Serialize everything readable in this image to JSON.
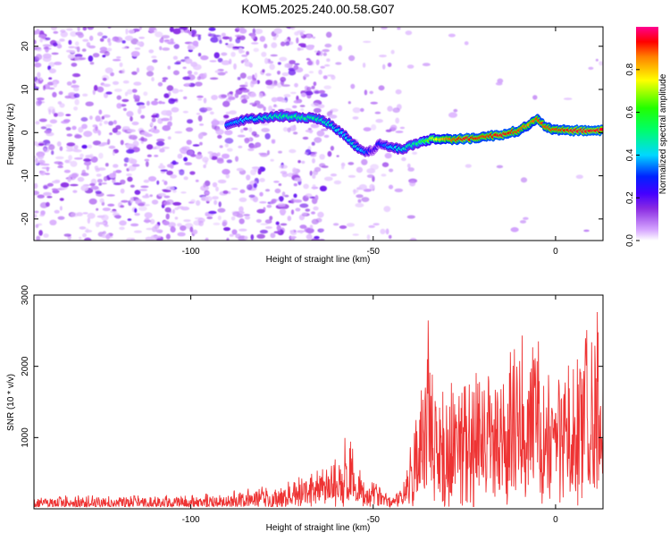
{
  "chart_data": [
    {
      "type": "heatmap",
      "title": "KOM5.2025.240.00.58.G07",
      "xlabel": "Height of straight line (km)",
      "ylabel": "Frequency (Hz)",
      "xlim": [
        -143,
        13
      ],
      "ylim": [
        -25,
        24.5
      ],
      "x_ticks": [
        -100,
        -50,
        0
      ],
      "y_ticks": [
        20,
        10,
        0,
        -10,
        -20
      ],
      "colorbar": {
        "label": "Normalized spectral amplitude",
        "range": [
          0,
          1
        ],
        "ticks": [
          0.0,
          0.2,
          0.4,
          0.6,
          0.8
        ]
      },
      "ridge": {
        "x": [
          -90,
          -85,
          -80,
          -75,
          -70,
          -66,
          -62,
          -58,
          -55,
          -52,
          -50,
          -48,
          -45,
          -42,
          -38,
          -34,
          -30,
          -25,
          -20,
          -15,
          -10,
          -7,
          -5,
          -3,
          0,
          5,
          10,
          13
        ],
        "freq": [
          2.0,
          3.0,
          3.5,
          3.8,
          3.5,
          3.5,
          2.0,
          -0.5,
          -3.0,
          -4.5,
          -4.0,
          -2.5,
          -3.5,
          -3.8,
          -2.5,
          -1.5,
          -1.5,
          -1.5,
          -1.0,
          -0.5,
          0.5,
          2.0,
          3.0,
          1.5,
          0.5,
          0.5,
          0.5,
          0.5
        ],
        "amp": [
          0.35,
          0.4,
          0.45,
          0.5,
          0.5,
          0.5,
          0.45,
          0.4,
          0.45,
          0.35,
          0.2,
          0.3,
          0.4,
          0.45,
          0.5,
          0.7,
          0.85,
          0.95,
          0.9,
          0.95,
          0.9,
          0.85,
          0.9,
          0.9,
          0.9,
          0.95,
          0.95,
          0.95
        ]
      }
    },
    {
      "type": "line",
      "xlabel": "Height of straight line (km)",
      "ylabel": "SNR (10 * v/v)",
      "xlim": [
        -143,
        13
      ],
      "ylim": [
        0,
        3000
      ],
      "x_ticks": [
        -100,
        -50,
        0
      ],
      "y_ticks": [
        1000,
        2000,
        3000
      ],
      "series_color": "#ee3333",
      "envelope": {
        "x": [
          -143,
          -130,
          -110,
          -95,
          -85,
          -75,
          -65,
          -60,
          -57,
          -55,
          -52,
          -48,
          -45,
          -42,
          -40,
          -38,
          -36,
          -35,
          -33,
          -30,
          -25,
          -20,
          -15,
          -10,
          -7,
          -5,
          -3,
          0,
          5,
          10,
          13
        ],
        "y": [
          150,
          150,
          150,
          180,
          220,
          300,
          450,
          600,
          900,
          650,
          400,
          250,
          150,
          300,
          700,
          1400,
          1500,
          2700,
          1400,
          1500,
          1700,
          1900,
          1800,
          1900,
          2200,
          2000,
          1500,
          1600,
          1900,
          2200,
          2500
        ]
      }
    }
  ]
}
